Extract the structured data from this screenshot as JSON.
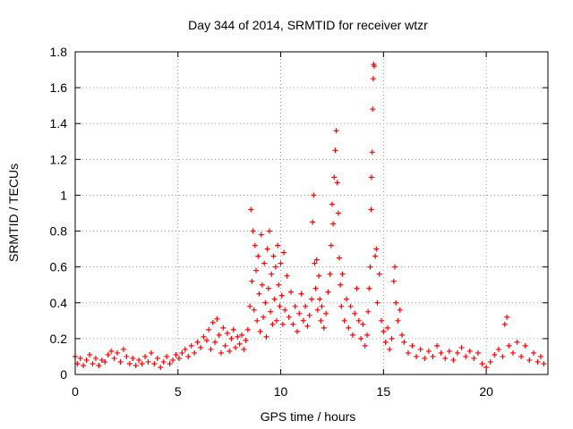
{
  "chart_data": {
    "type": "scatter",
    "title": "Day 344 of 2014, SRMTID for receiver wtzr",
    "xlabel": "GPS time / hours",
    "ylabel": "SRMTID / TECUs",
    "xlim": [
      0,
      23
    ],
    "ylim": [
      0,
      1.8
    ],
    "xticks": [
      0,
      5,
      10,
      15,
      20
    ],
    "xtick_labels": [
      "0",
      "5",
      "10",
      "15",
      "20"
    ],
    "yticks": [
      0,
      0.2,
      0.4,
      0.6,
      0.8,
      1.0,
      1.2,
      1.4,
      1.6,
      1.8
    ],
    "ytick_labels": [
      "0",
      "0.2",
      "0.4",
      "0.6",
      "0.8",
      "1",
      "1.2",
      "1.4",
      "1.6",
      "1.8"
    ],
    "grid": true,
    "marker": "+",
    "color": "#ff0000",
    "series": [
      {
        "name": "SRMTID",
        "points": [
          [
            0.0,
            0.1
          ],
          [
            0.1,
            0.06
          ],
          [
            0.25,
            0.09
          ],
          [
            0.4,
            0.05
          ],
          [
            0.55,
            0.08
          ],
          [
            0.7,
            0.11
          ],
          [
            0.85,
            0.06
          ],
          [
            1.0,
            0.09
          ],
          [
            1.15,
            0.05
          ],
          [
            1.3,
            0.08
          ],
          [
            1.45,
            0.07
          ],
          [
            1.6,
            0.11
          ],
          [
            1.75,
            0.13
          ],
          [
            1.9,
            0.09
          ],
          [
            2.05,
            0.12
          ],
          [
            2.2,
            0.07
          ],
          [
            2.35,
            0.14
          ],
          [
            2.5,
            0.1
          ],
          [
            2.65,
            0.06
          ],
          [
            2.8,
            0.09
          ],
          [
            2.95,
            0.05
          ],
          [
            3.1,
            0.08
          ],
          [
            3.25,
            0.06
          ],
          [
            3.4,
            0.1
          ],
          [
            3.55,
            0.07
          ],
          [
            3.7,
            0.12
          ],
          [
            3.85,
            0.06
          ],
          [
            4.0,
            0.09
          ],
          [
            4.15,
            0.04
          ],
          [
            4.3,
            0.07
          ],
          [
            4.45,
            0.1
          ],
          [
            4.6,
            0.06
          ],
          [
            4.75,
            0.08
          ],
          [
            4.9,
            0.11
          ],
          [
            5.05,
            0.09
          ],
          [
            5.2,
            0.12
          ],
          [
            5.35,
            0.14
          ],
          [
            5.5,
            0.1
          ],
          [
            5.65,
            0.16
          ],
          [
            5.8,
            0.12
          ],
          [
            5.95,
            0.18
          ],
          [
            6.1,
            0.15
          ],
          [
            6.25,
            0.21
          ],
          [
            6.4,
            0.19
          ],
          [
            6.5,
            0.25
          ],
          [
            6.6,
            0.14
          ],
          [
            6.7,
            0.29
          ],
          [
            6.8,
            0.18
          ],
          [
            6.9,
            0.31
          ],
          [
            7.0,
            0.22
          ],
          [
            7.1,
            0.12
          ],
          [
            7.2,
            0.26
          ],
          [
            7.3,
            0.16
          ],
          [
            7.4,
            0.23
          ],
          [
            7.5,
            0.13
          ],
          [
            7.6,
            0.2
          ],
          [
            7.7,
            0.25
          ],
          [
            7.8,
            0.15
          ],
          [
            7.9,
            0.21
          ],
          [
            8.0,
            0.17
          ],
          [
            8.1,
            0.22
          ],
          [
            8.2,
            0.14
          ],
          [
            8.3,
            0.19
          ],
          [
            8.4,
            0.25
          ],
          [
            8.5,
            0.38
          ],
          [
            8.55,
            0.92
          ],
          [
            8.6,
            0.52
          ],
          [
            8.65,
            0.8
          ],
          [
            8.7,
            0.36
          ],
          [
            8.75,
            0.72
          ],
          [
            8.8,
            0.58
          ],
          [
            8.85,
            0.3
          ],
          [
            8.9,
            0.66
          ],
          [
            8.95,
            0.45
          ],
          [
            9.0,
            0.24
          ],
          [
            9.05,
            0.78
          ],
          [
            9.1,
            0.5
          ],
          [
            9.15,
            0.32
          ],
          [
            9.2,
            0.62
          ],
          [
            9.25,
            0.4
          ],
          [
            9.3,
            0.21
          ],
          [
            9.35,
            0.7
          ],
          [
            9.4,
            0.48
          ],
          [
            9.45,
            0.8
          ],
          [
            9.5,
            0.35
          ],
          [
            9.55,
            0.56
          ],
          [
            9.6,
            0.28
          ],
          [
            9.65,
            0.66
          ],
          [
            9.7,
            0.42
          ],
          [
            9.75,
            0.6
          ],
          [
            9.8,
            0.3
          ],
          [
            9.85,
            0.72
          ],
          [
            9.9,
            0.5
          ],
          [
            9.95,
            0.38
          ],
          [
            10.0,
            0.62
          ],
          [
            10.05,
            0.44
          ],
          [
            10.1,
            0.28
          ],
          [
            10.15,
            0.68
          ],
          [
            10.2,
            0.36
          ],
          [
            10.3,
            0.55
          ],
          [
            10.4,
            0.32
          ],
          [
            10.5,
            0.46
          ],
          [
            10.6,
            0.28
          ],
          [
            10.7,
            0.38
          ],
          [
            10.8,
            0.24
          ],
          [
            10.9,
            0.34
          ],
          [
            11.0,
            0.45
          ],
          [
            11.1,
            0.3
          ],
          [
            11.2,
            0.38
          ],
          [
            11.3,
            0.27
          ],
          [
            11.4,
            0.33
          ],
          [
            11.5,
            0.42
          ],
          [
            11.55,
            0.85
          ],
          [
            11.6,
            1.0
          ],
          [
            11.65,
            0.62
          ],
          [
            11.7,
            0.48
          ],
          [
            11.75,
            0.64
          ],
          [
            11.8,
            0.36
          ],
          [
            11.85,
            0.55
          ],
          [
            11.9,
            0.42
          ],
          [
            11.95,
            0.3
          ],
          [
            12.0,
            0.38
          ],
          [
            12.1,
            0.26
          ],
          [
            12.2,
            0.34
          ],
          [
            12.3,
            0.46
          ],
          [
            12.4,
            0.56
          ],
          [
            12.45,
            0.72
          ],
          [
            12.5,
            0.95
          ],
          [
            12.55,
            0.84
          ],
          [
            12.6,
            1.1
          ],
          [
            12.65,
            1.25
          ],
          [
            12.7,
            1.36
          ],
          [
            12.75,
            1.07
          ],
          [
            12.8,
            0.9
          ],
          [
            12.85,
            0.65
          ],
          [
            12.9,
            0.5
          ],
          [
            12.95,
            0.38
          ],
          [
            13.0,
            0.56
          ],
          [
            13.1,
            0.3
          ],
          [
            13.2,
            0.42
          ],
          [
            13.3,
            0.26
          ],
          [
            13.4,
            0.38
          ],
          [
            13.5,
            0.22
          ],
          [
            13.6,
            0.34
          ],
          [
            13.7,
            0.48
          ],
          [
            13.8,
            0.3
          ],
          [
            13.9,
            0.2
          ],
          [
            14.0,
            0.28
          ],
          [
            14.1,
            0.16
          ],
          [
            14.2,
            0.22
          ],
          [
            14.25,
            0.35
          ],
          [
            14.3,
            0.48
          ],
          [
            14.35,
            0.6
          ],
          [
            14.4,
            0.92
          ],
          [
            14.42,
            1.1
          ],
          [
            14.45,
            1.24
          ],
          [
            14.47,
            1.48
          ],
          [
            14.5,
            1.65
          ],
          [
            14.52,
            1.73
          ],
          [
            14.55,
            1.72
          ],
          [
            14.6,
            0.66
          ],
          [
            14.65,
            0.7
          ],
          [
            14.7,
            0.4
          ],
          [
            14.8,
            0.56
          ],
          [
            14.9,
            0.3
          ],
          [
            15.0,
            0.24
          ],
          [
            15.1,
            0.18
          ],
          [
            15.2,
            0.26
          ],
          [
            15.3,
            0.14
          ],
          [
            15.4,
            0.2
          ],
          [
            15.5,
            0.52
          ],
          [
            15.55,
            0.6
          ],
          [
            15.6,
            0.4
          ],
          [
            15.7,
            0.3
          ],
          [
            15.8,
            0.36
          ],
          [
            15.9,
            0.22
          ],
          [
            16.0,
            0.18
          ],
          [
            16.2,
            0.12
          ],
          [
            16.4,
            0.16
          ],
          [
            16.6,
            0.1
          ],
          [
            16.8,
            0.14
          ],
          [
            17.0,
            0.09
          ],
          [
            17.2,
            0.13
          ],
          [
            17.4,
            0.1
          ],
          [
            17.6,
            0.16
          ],
          [
            17.8,
            0.12
          ],
          [
            18.0,
            0.09
          ],
          [
            18.2,
            0.13
          ],
          [
            18.4,
            0.08
          ],
          [
            18.6,
            0.12
          ],
          [
            18.8,
            0.15
          ],
          [
            19.0,
            0.1
          ],
          [
            19.2,
            0.13
          ],
          [
            19.4,
            0.09
          ],
          [
            19.6,
            0.12
          ],
          [
            19.8,
            0.06
          ],
          [
            20.0,
            0.04
          ],
          [
            20.2,
            0.07
          ],
          [
            20.4,
            0.11
          ],
          [
            20.6,
            0.14
          ],
          [
            20.8,
            0.1
          ],
          [
            20.9,
            0.28
          ],
          [
            21.0,
            0.32
          ],
          [
            21.1,
            0.16
          ],
          [
            21.3,
            0.12
          ],
          [
            21.5,
            0.18
          ],
          [
            21.7,
            0.1
          ],
          [
            21.9,
            0.16
          ],
          [
            22.1,
            0.08
          ],
          [
            22.3,
            0.12
          ],
          [
            22.5,
            0.07
          ],
          [
            22.65,
            0.1
          ],
          [
            22.8,
            0.06
          ]
        ]
      }
    ]
  }
}
